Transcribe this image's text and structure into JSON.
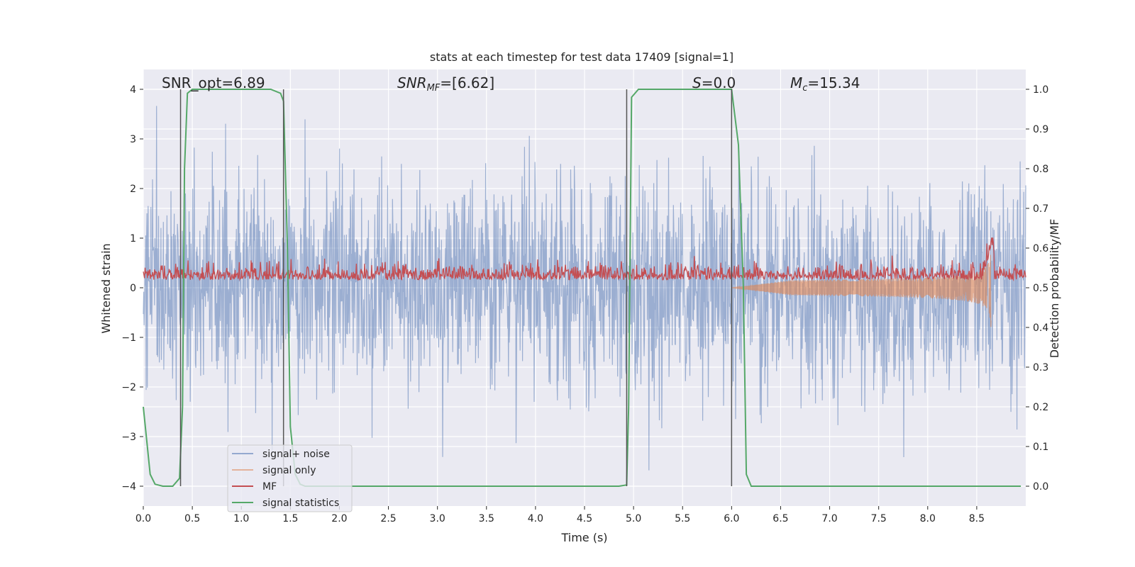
{
  "chart_data": {
    "type": "line",
    "title": "stats at each timestep for test data 17409 [signal=1]",
    "xlabel": "Time (s)",
    "ylabel": "Whitened strain",
    "y2label": "Detection probability/MF",
    "xlim": [
      0,
      9.0
    ],
    "ylim": [
      -4.4,
      4.4
    ],
    "y2lim": [
      -0.05,
      1.05
    ],
    "xticks": [
      0.0,
      0.5,
      1.0,
      1.5,
      2.0,
      2.5,
      3.0,
      3.5,
      4.0,
      4.5,
      5.0,
      5.5,
      6.0,
      6.5,
      7.0,
      7.5,
      8.0,
      8.5
    ],
    "yticks": [
      -4,
      -3,
      -2,
      -1,
      0,
      1,
      2,
      3,
      4
    ],
    "y2ticks": [
      0.0,
      0.1,
      0.2,
      0.3,
      0.4,
      0.5,
      0.6,
      0.7,
      0.8,
      0.9,
      1.0
    ],
    "grid": true,
    "legend_position": "lower-left",
    "annotations": [
      {
        "label": "SNR_opt",
        "value": "6.89"
      },
      {
        "label": "SNR_MF",
        "value": "[6.62]"
      },
      {
        "label": "S",
        "value": "0.0"
      },
      {
        "label": "M_c",
        "value": "15.34"
      }
    ],
    "vlines_x": [
      0.38,
      1.43,
      4.93,
      6.0
    ],
    "series": [
      {
        "name": "signal+ noise",
        "color": "#4c72b0",
        "axis": "left",
        "approx_amplitude_range": [
          -4.0,
          4.0
        ]
      },
      {
        "name": "signal only",
        "color": "#dd8452",
        "axis": "left",
        "chirp_end_time": 8.65,
        "peak_amplitude": 1.6
      },
      {
        "name": "MF",
        "color": "#c44e52",
        "axis": "right",
        "baseline": 0.5,
        "approx_range": [
          0.5,
          0.63
        ]
      },
      {
        "name": "signal statistics",
        "color": "#55a868",
        "axis": "right",
        "x": [
          0.0,
          0.07,
          0.12,
          0.2,
          0.3,
          0.37,
          0.4,
          0.42,
          0.45,
          0.5,
          1.3,
          1.4,
          1.43,
          1.47,
          1.5,
          1.55,
          1.6,
          1.65,
          4.85,
          4.93,
          4.95,
          4.98,
          5.05,
          6.0,
          6.07,
          6.12,
          6.15,
          6.2,
          8.95
        ],
        "y": [
          0.2,
          0.03,
          0.005,
          0.0,
          0.0,
          0.02,
          0.2,
          0.8,
          0.99,
          1.0,
          1.0,
          0.99,
          0.97,
          0.6,
          0.15,
          0.03,
          0.005,
          0.0,
          0.0,
          0.003,
          0.2,
          0.98,
          1.0,
          1.0,
          0.86,
          0.5,
          0.03,
          0.0,
          0.0
        ]
      }
    ]
  }
}
